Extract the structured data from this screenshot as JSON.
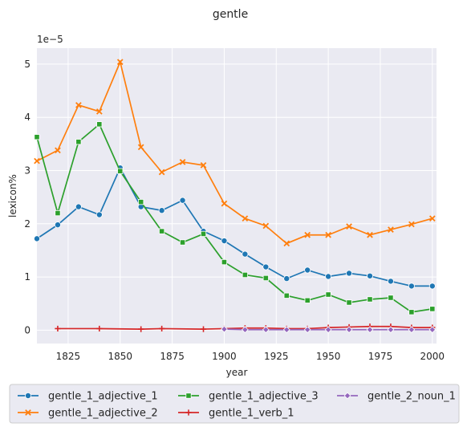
{
  "chart_data": {
    "type": "line",
    "title": "gentle",
    "xlabel": "year",
    "ylabel": "lexicon%",
    "y_offset_label": "1e−5",
    "xlim": [
      1810,
      2002
    ],
    "ylim": [
      -0.25,
      5.3
    ],
    "x_ticks": [
      1825,
      1850,
      1875,
      1900,
      1925,
      1950,
      1975,
      2000
    ],
    "x_tick_labels": [
      "1825",
      "1850",
      "1875",
      "1900",
      "1925",
      "1950",
      "1975",
      "2000"
    ],
    "y_ticks": [
      0,
      1,
      2,
      3,
      4,
      5
    ],
    "y_tick_labels": [
      "0",
      "1",
      "2",
      "3",
      "4",
      "5"
    ],
    "grid": true,
    "legend_placement": "below",
    "series": [
      {
        "name": "gentle_1_adjective_1",
        "color": "#1f77b4",
        "marker": "circle",
        "x": [
          1810,
          1820,
          1830,
          1840,
          1850,
          1860,
          1870,
          1880,
          1890,
          1900,
          1910,
          1920,
          1930,
          1940,
          1950,
          1960,
          1970,
          1980,
          1990,
          2000
        ],
        "values": [
          1.72,
          1.98,
          2.32,
          2.17,
          3.05,
          2.32,
          2.25,
          2.44,
          1.86,
          1.68,
          1.43,
          1.19,
          0.97,
          1.13,
          1.01,
          1.07,
          1.02,
          0.92,
          0.83,
          0.83
        ]
      },
      {
        "name": "gentle_1_adjective_2",
        "color": "#ff7f0e",
        "marker": "x",
        "x": [
          1810,
          1820,
          1830,
          1840,
          1850,
          1860,
          1870,
          1880,
          1890,
          1900,
          1910,
          1920,
          1930,
          1940,
          1950,
          1960,
          1970,
          1980,
          1990,
          2000
        ],
        "values": [
          3.18,
          3.38,
          4.23,
          4.11,
          5.04,
          3.44,
          2.97,
          3.16,
          3.1,
          2.38,
          2.1,
          1.96,
          1.63,
          1.79,
          1.79,
          1.95,
          1.79,
          1.89,
          1.99,
          2.1
        ]
      },
      {
        "name": "gentle_1_adjective_3",
        "color": "#2ca02c",
        "marker": "square",
        "x": [
          1810,
          1820,
          1830,
          1840,
          1850,
          1860,
          1870,
          1880,
          1890,
          1900,
          1910,
          1920,
          1930,
          1940,
          1950,
          1960,
          1970,
          1980,
          1990,
          2000
        ],
        "values": [
          3.63,
          2.2,
          3.54,
          3.87,
          2.99,
          2.41,
          1.86,
          1.65,
          1.81,
          1.28,
          1.04,
          0.98,
          0.65,
          0.56,
          0.67,
          0.52,
          0.58,
          0.61,
          0.34,
          0.4
        ]
      },
      {
        "name": "gentle_1_verb_1",
        "color": "#d62728",
        "marker": "plus",
        "x": [
          1820,
          1840,
          1860,
          1870,
          1890,
          1900,
          1910,
          1920,
          1930,
          1940,
          1950,
          1960,
          1970,
          1980,
          1990,
          2000
        ],
        "values": [
          0.03,
          0.03,
          0.02,
          0.03,
          0.02,
          0.03,
          0.04,
          0.04,
          0.03,
          0.03,
          0.05,
          0.06,
          0.07,
          0.07,
          0.05,
          0.05
        ]
      },
      {
        "name": "gentle_2_noun_1",
        "color": "#9467bd",
        "marker": "diamond",
        "x": [
          1900,
          1910,
          1920,
          1930,
          1940,
          1950,
          1960,
          1970,
          1980,
          1990,
          2000
        ],
        "values": [
          0.02,
          0.01,
          0.01,
          0.01,
          0.01,
          0.01,
          0.01,
          0.01,
          0.01,
          0.01,
          0.01
        ]
      }
    ]
  }
}
